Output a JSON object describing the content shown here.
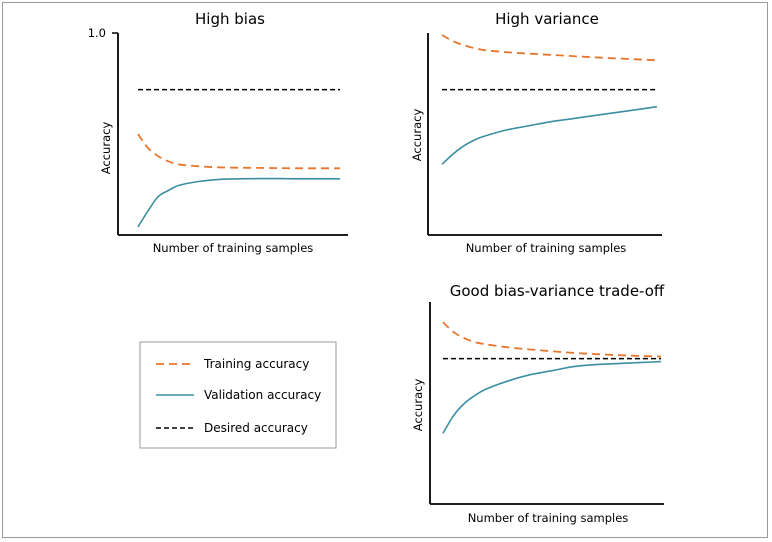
{
  "colors": {
    "training": "#e8752c",
    "validation": "#3b8fa3",
    "desired": "#000000",
    "axis": "#000000",
    "frame": "#9a9a9a"
  },
  "chart_data": [
    {
      "type": "line",
      "title": "High bias",
      "xlabel": "Number of training samples",
      "ylabel": "Accuracy",
      "ylim": [
        0,
        1.0
      ],
      "ytick_labels": [
        "1.0"
      ],
      "grid": false,
      "x": [
        0.0,
        0.05,
        0.1,
        0.15,
        0.2,
        0.3,
        0.4,
        0.5,
        0.6,
        0.7,
        0.8,
        0.9,
        1.0
      ],
      "series": [
        {
          "key": "training",
          "style": "dashed",
          "values": [
            0.5,
            0.43,
            0.39,
            0.365,
            0.35,
            0.34,
            0.335,
            0.333,
            0.332,
            0.331,
            0.33,
            0.33,
            0.33
          ]
        },
        {
          "key": "validation",
          "style": "solid",
          "values": [
            0.04,
            0.12,
            0.19,
            0.22,
            0.245,
            0.265,
            0.275,
            0.278,
            0.279,
            0.279,
            0.278,
            0.278,
            0.278
          ]
        },
        {
          "key": "desired",
          "style": "dashed",
          "values": [
            0.72,
            0.72,
            0.72,
            0.72,
            0.72,
            0.72,
            0.72,
            0.72,
            0.72,
            0.72,
            0.72,
            0.72,
            0.72
          ]
        }
      ]
    },
    {
      "type": "line",
      "title": "High variance",
      "xlabel": "Number of training samples",
      "ylabel": "Accuracy",
      "ylim": [
        0,
        1.0
      ],
      "grid": false,
      "x": [
        0.0,
        0.05,
        0.1,
        0.15,
        0.2,
        0.3,
        0.4,
        0.5,
        0.6,
        0.7,
        0.8,
        0.9,
        1.0
      ],
      "series": [
        {
          "key": "training",
          "style": "dashed",
          "values": [
            0.99,
            0.96,
            0.94,
            0.925,
            0.915,
            0.905,
            0.898,
            0.892,
            0.886,
            0.88,
            0.875,
            0.87,
            0.865
          ]
        },
        {
          "key": "validation",
          "style": "solid",
          "values": [
            0.35,
            0.4,
            0.44,
            0.47,
            0.49,
            0.52,
            0.54,
            0.56,
            0.575,
            0.59,
            0.605,
            0.62,
            0.635
          ]
        },
        {
          "key": "desired",
          "style": "dashed",
          "values": [
            0.72,
            0.72,
            0.72,
            0.72,
            0.72,
            0.72,
            0.72,
            0.72,
            0.72,
            0.72,
            0.72,
            0.72,
            0.72
          ]
        }
      ]
    },
    {
      "type": "line",
      "title": "Good bias-variance trade-off",
      "xlabel": "Number of training samples",
      "ylabel": "Accuracy",
      "ylim": [
        0,
        1.0
      ],
      "grid": false,
      "x": [
        0.0,
        0.05,
        0.1,
        0.15,
        0.2,
        0.3,
        0.4,
        0.5,
        0.6,
        0.7,
        0.8,
        0.9,
        1.0
      ],
      "series": [
        {
          "key": "training",
          "style": "dashed",
          "values": [
            0.9,
            0.85,
            0.82,
            0.8,
            0.79,
            0.775,
            0.765,
            0.756,
            0.748,
            0.742,
            0.737,
            0.733,
            0.73
          ]
        },
        {
          "key": "validation",
          "style": "solid",
          "values": [
            0.35,
            0.44,
            0.5,
            0.54,
            0.57,
            0.61,
            0.64,
            0.66,
            0.68,
            0.69,
            0.695,
            0.7,
            0.705
          ]
        },
        {
          "key": "desired",
          "style": "dashed",
          "values": [
            0.72,
            0.72,
            0.72,
            0.72,
            0.72,
            0.72,
            0.72,
            0.72,
            0.72,
            0.72,
            0.72,
            0.72,
            0.72
          ]
        }
      ]
    }
  ],
  "legend": {
    "placement": "bottom-left",
    "items": [
      {
        "key": "training",
        "label": "Training accuracy",
        "style": "dashed"
      },
      {
        "key": "validation",
        "label": "Validation accuracy",
        "style": "solid"
      },
      {
        "key": "desired",
        "label": "Desired accuracy",
        "style": "dashed"
      }
    ]
  }
}
